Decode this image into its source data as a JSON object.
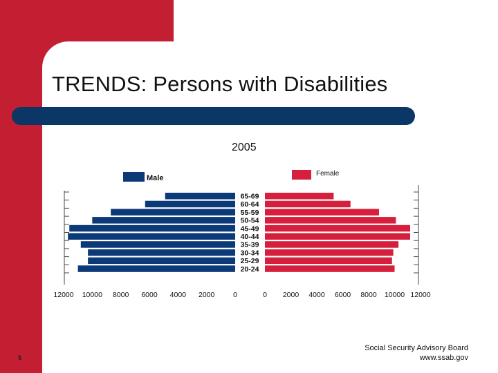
{
  "slide": {
    "title": "TRENDS: Persons with Disabilities",
    "subtitle": "2005",
    "page_number": "5",
    "footer_line1": "Social Security Advisory Board",
    "footer_line2": "www.ssab.gov"
  },
  "colors": {
    "accent_red": "#c41e32",
    "title_bar_navy": "#0b3766",
    "male_bar": "#0c3a78",
    "female_bar": "#d61f3c"
  },
  "chart_data": {
    "type": "bar",
    "orientation": "horizontal-population-pyramid",
    "categories": [
      "65-69",
      "60-64",
      "55-59",
      "50-54",
      "45-49",
      "40-44",
      "35-39",
      "30-34",
      "25-29",
      "20-24"
    ],
    "series": [
      {
        "name": "Male",
        "values": [
          4900,
          6300,
          8700,
          10000,
          11600,
          11700,
          10800,
          10300,
          10300,
          11000
        ]
      },
      {
        "name": "Female",
        "values": [
          5300,
          6600,
          8800,
          10100,
          11200,
          11200,
          10300,
          9900,
          9800,
          10000
        ]
      }
    ],
    "male_axis_ticks": [
      "12000",
      "10000",
      "8000",
      "6000",
      "4000",
      "2000",
      "0"
    ],
    "female_axis_ticks": [
      "0",
      "2000",
      "4000",
      "6000",
      "8000",
      "10000",
      "12000"
    ],
    "xlim": [
      0,
      12000
    ],
    "legend_placement": "top"
  }
}
